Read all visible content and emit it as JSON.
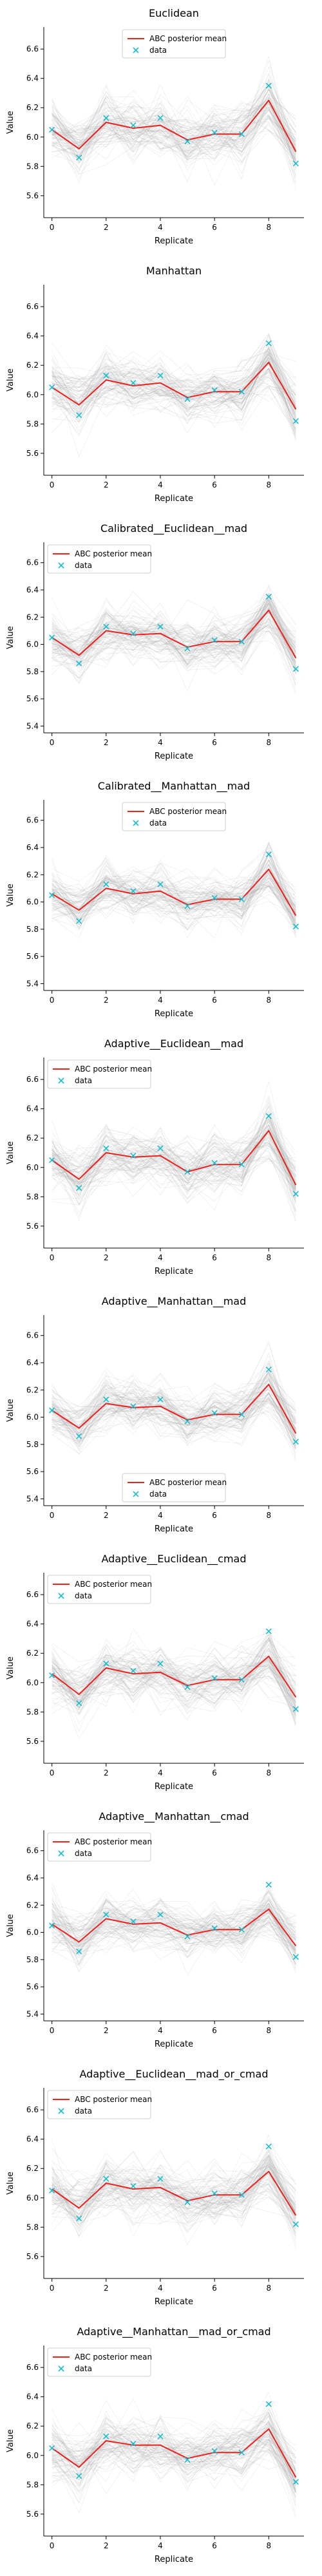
{
  "figure": {
    "common_xlabel": "Replicate",
    "common_ylabel": "Value"
  },
  "chart_data": [
    {
      "type": "line",
      "title": "Euclidean",
      "xlabel": "Replicate",
      "ylabel": "Value",
      "xlim": [
        -0.3,
        9.3
      ],
      "ylim": [
        5.45,
        6.75
      ],
      "xticks": [
        0,
        2,
        4,
        6,
        8
      ],
      "yticks": [
        5.6,
        5.8,
        6.0,
        6.2,
        6.4,
        6.6
      ],
      "legend_loc": "upper center",
      "series": [
        {
          "name": "ABC posterior mean",
          "color": "#e8221f",
          "x": [
            0,
            1,
            2,
            3,
            4,
            5,
            6,
            7,
            8,
            9
          ],
          "y": [
            6.05,
            5.92,
            6.1,
            6.06,
            6.08,
            5.98,
            6.02,
            6.02,
            6.25,
            5.9
          ]
        },
        {
          "name": "data",
          "color": "#17becf",
          "marker": "x",
          "x": [
            0,
            1,
            2,
            3,
            4,
            5,
            6,
            7,
            8,
            9
          ],
          "y": [
            6.05,
            5.86,
            6.13,
            6.08,
            6.13,
            5.97,
            6.03,
            6.02,
            6.35,
            5.82
          ]
        }
      ]
    },
    {
      "type": "line",
      "title": "Manhattan",
      "xlabel": "Replicate",
      "ylabel": "Value",
      "xlim": [
        -0.3,
        9.3
      ],
      "ylim": [
        5.45,
        6.75
      ],
      "xticks": [
        0,
        2,
        4,
        6,
        8
      ],
      "yticks": [
        5.6,
        5.8,
        6.0,
        6.2,
        6.4,
        6.6
      ],
      "legend_loc": "none",
      "series": [
        {
          "name": "ABC posterior mean",
          "color": "#e8221f",
          "x": [
            0,
            1,
            2,
            3,
            4,
            5,
            6,
            7,
            8,
            9
          ],
          "y": [
            6.05,
            5.93,
            6.1,
            6.06,
            6.08,
            5.98,
            6.02,
            6.02,
            6.22,
            5.9
          ]
        },
        {
          "name": "data",
          "color": "#17becf",
          "marker": "x",
          "x": [
            0,
            1,
            2,
            3,
            4,
            5,
            6,
            7,
            8,
            9
          ],
          "y": [
            6.05,
            5.86,
            6.13,
            6.08,
            6.13,
            5.97,
            6.03,
            6.02,
            6.35,
            5.82
          ]
        }
      ]
    },
    {
      "type": "line",
      "title": "Calibrated__Euclidean__mad",
      "xlabel": "Replicate",
      "ylabel": "Value",
      "xlim": [
        -0.3,
        9.3
      ],
      "ylim": [
        5.35,
        6.75
      ],
      "xticks": [
        0,
        2,
        4,
        6,
        8
      ],
      "yticks": [
        5.4,
        5.6,
        5.8,
        6.0,
        6.2,
        6.4,
        6.6
      ],
      "legend_loc": "upper left",
      "series": [
        {
          "name": "ABC posterior mean",
          "color": "#e8221f",
          "x": [
            0,
            1,
            2,
            3,
            4,
            5,
            6,
            7,
            8,
            9
          ],
          "y": [
            6.05,
            5.92,
            6.1,
            6.07,
            6.08,
            5.98,
            6.02,
            6.02,
            6.25,
            5.9
          ]
        },
        {
          "name": "data",
          "color": "#17becf",
          "marker": "x",
          "x": [
            0,
            1,
            2,
            3,
            4,
            5,
            6,
            7,
            8,
            9
          ],
          "y": [
            6.05,
            5.86,
            6.13,
            6.08,
            6.13,
            5.97,
            6.03,
            6.02,
            6.35,
            5.82
          ]
        }
      ]
    },
    {
      "type": "line",
      "title": "Calibrated__Manhattan__mad",
      "xlabel": "Replicate",
      "ylabel": "Value",
      "xlim": [
        -0.3,
        9.3
      ],
      "ylim": [
        5.35,
        6.75
      ],
      "xticks": [
        0,
        2,
        4,
        6,
        8
      ],
      "yticks": [
        5.4,
        5.6,
        5.8,
        6.0,
        6.2,
        6.4,
        6.6
      ],
      "legend_loc": "upper center",
      "series": [
        {
          "name": "ABC posterior mean",
          "color": "#e8221f",
          "x": [
            0,
            1,
            2,
            3,
            4,
            5,
            6,
            7,
            8,
            9
          ],
          "y": [
            6.06,
            5.94,
            6.1,
            6.06,
            6.08,
            5.98,
            6.02,
            6.02,
            6.24,
            5.9
          ]
        },
        {
          "name": "data",
          "color": "#17becf",
          "marker": "x",
          "x": [
            0,
            1,
            2,
            3,
            4,
            5,
            6,
            7,
            8,
            9
          ],
          "y": [
            6.05,
            5.86,
            6.13,
            6.08,
            6.13,
            5.97,
            6.03,
            6.02,
            6.35,
            5.82
          ]
        }
      ]
    },
    {
      "type": "line",
      "title": "Adaptive__Euclidean__mad",
      "xlabel": "Replicate",
      "ylabel": "Value",
      "xlim": [
        -0.3,
        9.3
      ],
      "ylim": [
        5.45,
        6.75
      ],
      "xticks": [
        0,
        2,
        4,
        6,
        8
      ],
      "yticks": [
        5.6,
        5.8,
        6.0,
        6.2,
        6.4,
        6.6
      ],
      "legend_loc": "upper left",
      "series": [
        {
          "name": "ABC posterior mean",
          "color": "#e8221f",
          "x": [
            0,
            1,
            2,
            3,
            4,
            5,
            6,
            7,
            8,
            9
          ],
          "y": [
            6.05,
            5.92,
            6.1,
            6.07,
            6.08,
            5.97,
            6.02,
            6.02,
            6.25,
            5.88
          ]
        },
        {
          "name": "data",
          "color": "#17becf",
          "marker": "x",
          "x": [
            0,
            1,
            2,
            3,
            4,
            5,
            6,
            7,
            8,
            9
          ],
          "y": [
            6.05,
            5.86,
            6.13,
            6.08,
            6.13,
            5.97,
            6.03,
            6.02,
            6.35,
            5.82
          ]
        }
      ]
    },
    {
      "type": "line",
      "title": "Adaptive__Manhattan__mad",
      "xlabel": "Replicate",
      "ylabel": "Value",
      "xlim": [
        -0.3,
        9.3
      ],
      "ylim": [
        5.35,
        6.75
      ],
      "xticks": [
        0,
        2,
        4,
        6,
        8
      ],
      "yticks": [
        5.4,
        5.6,
        5.8,
        6.0,
        6.2,
        6.4,
        6.6
      ],
      "legend_loc": "lower center",
      "series": [
        {
          "name": "ABC posterior mean",
          "color": "#e8221f",
          "x": [
            0,
            1,
            2,
            3,
            4,
            5,
            6,
            7,
            8,
            9
          ],
          "y": [
            6.05,
            5.92,
            6.1,
            6.07,
            6.08,
            5.98,
            6.02,
            6.02,
            6.24,
            5.88
          ]
        },
        {
          "name": "data",
          "color": "#17becf",
          "marker": "x",
          "x": [
            0,
            1,
            2,
            3,
            4,
            5,
            6,
            7,
            8,
            9
          ],
          "y": [
            6.05,
            5.86,
            6.13,
            6.08,
            6.13,
            5.97,
            6.03,
            6.02,
            6.35,
            5.82
          ]
        }
      ]
    },
    {
      "type": "line",
      "title": "Adaptive__Euclidean__cmad",
      "xlabel": "Replicate",
      "ylabel": "Value",
      "xlim": [
        -0.3,
        9.3
      ],
      "ylim": [
        5.45,
        6.75
      ],
      "xticks": [
        0,
        2,
        4,
        6,
        8
      ],
      "yticks": [
        5.6,
        5.8,
        6.0,
        6.2,
        6.4,
        6.6
      ],
      "legend_loc": "upper left",
      "series": [
        {
          "name": "ABC posterior mean",
          "color": "#e8221f",
          "x": [
            0,
            1,
            2,
            3,
            4,
            5,
            6,
            7,
            8,
            9
          ],
          "y": [
            6.06,
            5.92,
            6.1,
            6.06,
            6.07,
            5.98,
            6.02,
            6.02,
            6.18,
            5.9
          ]
        },
        {
          "name": "data",
          "color": "#17becf",
          "marker": "x",
          "x": [
            0,
            1,
            2,
            3,
            4,
            5,
            6,
            7,
            8,
            9
          ],
          "y": [
            6.05,
            5.86,
            6.13,
            6.08,
            6.13,
            5.97,
            6.03,
            6.02,
            6.35,
            5.82
          ]
        }
      ]
    },
    {
      "type": "line",
      "title": "Adaptive__Manhattan__cmad",
      "xlabel": "Replicate",
      "ylabel": "Value",
      "xlim": [
        -0.3,
        9.3
      ],
      "ylim": [
        5.35,
        6.75
      ],
      "xticks": [
        0,
        2,
        4,
        6,
        8
      ],
      "yticks": [
        5.4,
        5.6,
        5.8,
        6.0,
        6.2,
        6.4,
        6.6
      ],
      "legend_loc": "upper left",
      "series": [
        {
          "name": "ABC posterior mean",
          "color": "#e8221f",
          "x": [
            0,
            1,
            2,
            3,
            4,
            5,
            6,
            7,
            8,
            9
          ],
          "y": [
            6.06,
            5.93,
            6.1,
            6.06,
            6.07,
            5.98,
            6.02,
            6.02,
            6.17,
            5.9
          ]
        },
        {
          "name": "data",
          "color": "#17becf",
          "marker": "x",
          "x": [
            0,
            1,
            2,
            3,
            4,
            5,
            6,
            7,
            8,
            9
          ],
          "y": [
            6.05,
            5.86,
            6.13,
            6.08,
            6.13,
            5.97,
            6.03,
            6.02,
            6.35,
            5.82
          ]
        }
      ]
    },
    {
      "type": "line",
      "title": "Adaptive__Euclidean__mad_or_cmad",
      "xlabel": "Replicate",
      "ylabel": "Value",
      "xlim": [
        -0.3,
        9.3
      ],
      "ylim": [
        5.45,
        6.75
      ],
      "xticks": [
        0,
        2,
        4,
        6,
        8
      ],
      "yticks": [
        5.6,
        5.8,
        6.0,
        6.2,
        6.4,
        6.6
      ],
      "legend_loc": "upper left",
      "series": [
        {
          "name": "ABC posterior mean",
          "color": "#e8221f",
          "x": [
            0,
            1,
            2,
            3,
            4,
            5,
            6,
            7,
            8,
            9
          ],
          "y": [
            6.06,
            5.93,
            6.1,
            6.06,
            6.07,
            5.98,
            6.02,
            6.02,
            6.18,
            5.88
          ]
        },
        {
          "name": "data",
          "color": "#17becf",
          "marker": "x",
          "x": [
            0,
            1,
            2,
            3,
            4,
            5,
            6,
            7,
            8,
            9
          ],
          "y": [
            6.05,
            5.86,
            6.13,
            6.08,
            6.13,
            5.97,
            6.03,
            6.02,
            6.35,
            5.82
          ]
        }
      ]
    },
    {
      "type": "line",
      "title": "Adaptive__Manhattan__mad_or_cmad",
      "xlabel": "Replicate",
      "ylabel": "Value",
      "xlim": [
        -0.3,
        9.3
      ],
      "ylim": [
        5.45,
        6.75
      ],
      "xticks": [
        0,
        2,
        4,
        6,
        8
      ],
      "yticks": [
        5.6,
        5.8,
        6.0,
        6.2,
        6.4,
        6.6
      ],
      "legend_loc": "upper left",
      "series": [
        {
          "name": "ABC posterior mean",
          "color": "#e8221f",
          "x": [
            0,
            1,
            2,
            3,
            4,
            5,
            6,
            7,
            8,
            9
          ],
          "y": [
            6.05,
            5.92,
            6.1,
            6.07,
            6.07,
            5.98,
            6.02,
            6.02,
            6.18,
            5.85
          ]
        },
        {
          "name": "data",
          "color": "#17becf",
          "marker": "x",
          "x": [
            0,
            1,
            2,
            3,
            4,
            5,
            6,
            7,
            8,
            9
          ],
          "y": [
            6.05,
            5.86,
            6.13,
            6.08,
            6.13,
            5.97,
            6.03,
            6.02,
            6.35,
            5.82
          ]
        }
      ]
    }
  ]
}
